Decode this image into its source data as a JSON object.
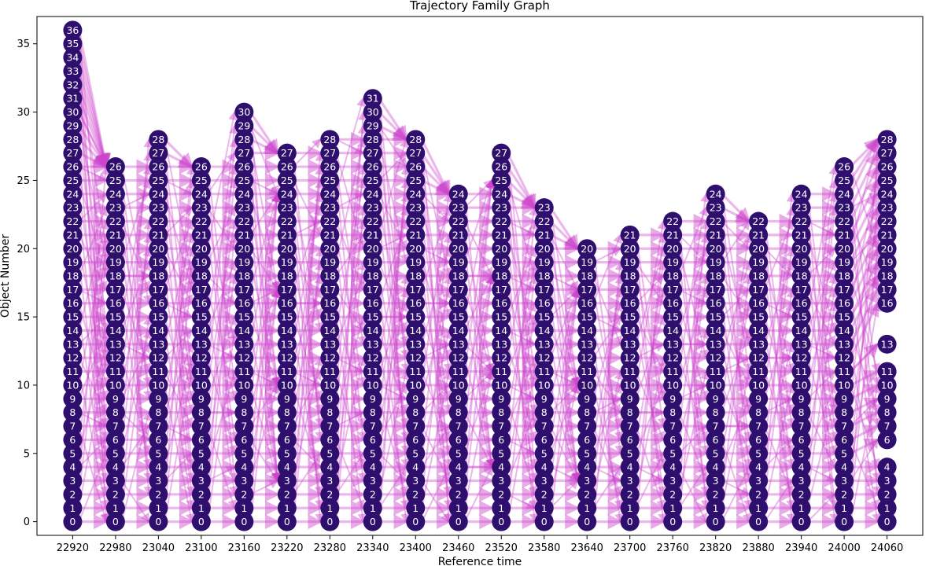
{
  "chart_data": {
    "type": "scatter",
    "title": "Trajectory Family Graph",
    "xlabel": "Reference time",
    "ylabel": "Object Number",
    "x_ticks": [
      22920,
      22980,
      23040,
      23100,
      23160,
      23220,
      23280,
      23340,
      23400,
      23460,
      23520,
      23580,
      23640,
      23700,
      23760,
      23820,
      23880,
      23940,
      24000,
      24060
    ],
    "y_ticks": [
      0,
      5,
      10,
      15,
      20,
      25,
      30,
      35
    ],
    "xlim": [
      22870,
      24110
    ],
    "ylim": [
      -1,
      37
    ],
    "grid": false,
    "node_color": "#2e0f6e",
    "edge_color": "#cc44cc",
    "columns": [
      {
        "x": 22920,
        "objects": [
          0,
          1,
          2,
          3,
          4,
          5,
          6,
          7,
          8,
          9,
          10,
          11,
          12,
          13,
          14,
          15,
          16,
          17,
          18,
          19,
          20,
          21,
          22,
          23,
          24,
          25,
          26,
          27,
          28,
          29,
          30,
          31,
          32,
          33,
          34,
          35,
          36
        ]
      },
      {
        "x": 22980,
        "objects": [
          0,
          1,
          2,
          3,
          4,
          5,
          6,
          7,
          8,
          9,
          10,
          11,
          12,
          13,
          14,
          15,
          16,
          17,
          18,
          19,
          20,
          21,
          22,
          23,
          24,
          25,
          26
        ]
      },
      {
        "x": 23040,
        "objects": [
          0,
          1,
          2,
          3,
          4,
          5,
          6,
          7,
          8,
          9,
          10,
          11,
          12,
          13,
          14,
          15,
          16,
          17,
          18,
          19,
          20,
          21,
          22,
          23,
          24,
          25,
          26,
          27,
          28
        ]
      },
      {
        "x": 23100,
        "objects": [
          0,
          1,
          2,
          3,
          4,
          5,
          6,
          7,
          8,
          9,
          10,
          11,
          12,
          13,
          14,
          15,
          16,
          17,
          18,
          19,
          20,
          21,
          22,
          23,
          24,
          25,
          26
        ]
      },
      {
        "x": 23160,
        "objects": [
          0,
          1,
          2,
          3,
          4,
          5,
          6,
          7,
          8,
          9,
          10,
          11,
          12,
          13,
          14,
          15,
          16,
          17,
          18,
          19,
          20,
          21,
          22,
          23,
          24,
          25,
          26,
          27,
          28,
          29,
          30
        ]
      },
      {
        "x": 23220,
        "objects": [
          0,
          1,
          2,
          3,
          4,
          5,
          6,
          7,
          8,
          9,
          10,
          11,
          12,
          13,
          14,
          15,
          16,
          17,
          18,
          19,
          20,
          21,
          22,
          23,
          24,
          25,
          26,
          27
        ]
      },
      {
        "x": 23280,
        "objects": [
          0,
          1,
          2,
          3,
          4,
          5,
          6,
          7,
          8,
          9,
          10,
          11,
          12,
          13,
          14,
          15,
          16,
          17,
          18,
          19,
          20,
          21,
          22,
          23,
          24,
          25,
          26,
          27,
          28
        ]
      },
      {
        "x": 23340,
        "objects": [
          0,
          1,
          2,
          3,
          4,
          5,
          6,
          7,
          8,
          9,
          10,
          11,
          12,
          13,
          14,
          15,
          16,
          17,
          18,
          19,
          20,
          21,
          22,
          23,
          24,
          25,
          26,
          27,
          28,
          29,
          30,
          31
        ]
      },
      {
        "x": 23400,
        "objects": [
          0,
          1,
          2,
          3,
          4,
          5,
          6,
          7,
          8,
          9,
          10,
          11,
          12,
          13,
          14,
          15,
          16,
          17,
          18,
          19,
          20,
          21,
          22,
          23,
          24,
          25,
          26,
          27,
          28
        ]
      },
      {
        "x": 23460,
        "objects": [
          0,
          1,
          2,
          3,
          4,
          5,
          6,
          7,
          8,
          9,
          10,
          11,
          12,
          13,
          14,
          15,
          16,
          17,
          18,
          19,
          20,
          21,
          22,
          23,
          24
        ]
      },
      {
        "x": 23520,
        "objects": [
          0,
          1,
          2,
          3,
          4,
          5,
          6,
          7,
          8,
          9,
          10,
          11,
          12,
          13,
          14,
          15,
          16,
          17,
          18,
          19,
          20,
          21,
          22,
          23,
          24,
          25,
          26,
          27
        ]
      },
      {
        "x": 23580,
        "objects": [
          0,
          1,
          2,
          3,
          4,
          5,
          6,
          7,
          8,
          9,
          10,
          11,
          12,
          13,
          14,
          15,
          16,
          17,
          18,
          19,
          20,
          21,
          22,
          23
        ]
      },
      {
        "x": 23640,
        "objects": [
          0,
          1,
          2,
          3,
          4,
          5,
          6,
          7,
          8,
          9,
          10,
          11,
          12,
          13,
          14,
          15,
          16,
          17,
          18,
          19,
          20
        ]
      },
      {
        "x": 23700,
        "objects": [
          0,
          1,
          2,
          3,
          4,
          5,
          6,
          7,
          8,
          9,
          10,
          11,
          12,
          13,
          14,
          15,
          16,
          17,
          18,
          19,
          20,
          21
        ]
      },
      {
        "x": 23760,
        "objects": [
          0,
          1,
          2,
          3,
          4,
          5,
          6,
          7,
          8,
          9,
          10,
          11,
          12,
          13,
          14,
          15,
          16,
          17,
          18,
          19,
          20,
          21,
          22
        ]
      },
      {
        "x": 23820,
        "objects": [
          0,
          1,
          2,
          3,
          4,
          5,
          6,
          7,
          8,
          9,
          10,
          11,
          12,
          13,
          14,
          15,
          16,
          17,
          18,
          19,
          20,
          21,
          22,
          23,
          24
        ]
      },
      {
        "x": 23880,
        "objects": [
          0,
          1,
          2,
          3,
          4,
          5,
          6,
          7,
          8,
          9,
          10,
          11,
          12,
          13,
          14,
          15,
          16,
          17,
          18,
          19,
          20,
          21,
          22
        ]
      },
      {
        "x": 23940,
        "objects": [
          0,
          1,
          2,
          3,
          4,
          5,
          6,
          7,
          8,
          9,
          10,
          11,
          12,
          13,
          14,
          15,
          16,
          17,
          18,
          19,
          20,
          21,
          22,
          23,
          24
        ]
      },
      {
        "x": 24000,
        "objects": [
          0,
          1,
          2,
          3,
          4,
          5,
          6,
          7,
          8,
          9,
          10,
          11,
          12,
          13,
          14,
          15,
          16,
          17,
          18,
          19,
          20,
          21,
          22,
          23,
          24,
          25,
          26
        ]
      },
      {
        "x": 24060,
        "objects": [
          0,
          1,
          2,
          3,
          4,
          6,
          7,
          8,
          9,
          10,
          11,
          13,
          16,
          17,
          18,
          19,
          20,
          21,
          22,
          23,
          24,
          25,
          26,
          27,
          28
        ]
      }
    ]
  }
}
